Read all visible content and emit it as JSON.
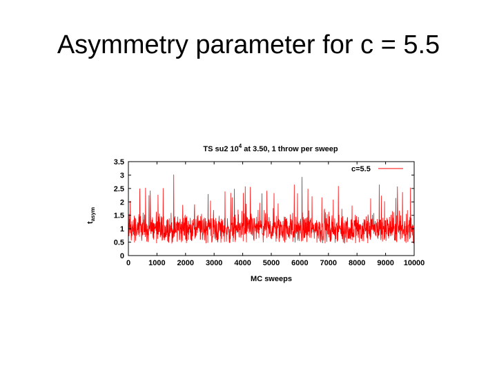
{
  "slide": {
    "title": "Asymmetry parameter for c = 5.5"
  },
  "chart_data": {
    "type": "line",
    "title": "TS su2 10",
    "title_superscript": "4",
    "title_rest": " at 3.50, 1 throw per sweep",
    "xlabel": "MC sweeps",
    "ylabel_main": "t",
    "ylabel_sub": "asym",
    "xlim": [
      0,
      10000
    ],
    "ylim": [
      0,
      3.5
    ],
    "x_ticks": [
      "0",
      "1000",
      "2000",
      "3000",
      "4000",
      "5000",
      "6000",
      "7000",
      "8000",
      "9000",
      "10000"
    ],
    "y_ticks": [
      "0",
      "0.5",
      "1",
      "1.5",
      "2",
      "2.5",
      "3",
      "3.5"
    ],
    "legend_position": "top-right",
    "grid": false,
    "series": [
      {
        "name": "c=5.5",
        "color": "#ff0000",
        "mean": 1.0,
        "typical_min": 0.5,
        "typical_max": 2.3,
        "max": 3.1,
        "num_points": 10000
      }
    ]
  }
}
